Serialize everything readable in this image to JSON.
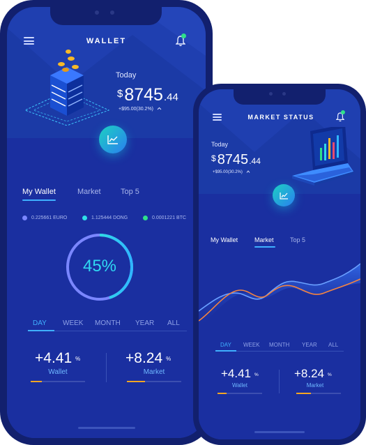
{
  "colors": {
    "frame": "#12206e",
    "header_bg": "#1b3aa6",
    "body_bg": "#1a2fa0",
    "accent_blue": "#3fb0ff",
    "accent_orange": "#f5a623",
    "accent_green": "#2ee08a",
    "fab_gradient": [
      "#1cd0c2",
      "#2a7ff0"
    ]
  },
  "phone1": {
    "header": {
      "title": "WALLET",
      "menu_icon": "hamburger-icon",
      "notification_icon": "bell-icon"
    },
    "balance": {
      "today_label": "Today",
      "currency": "$",
      "amount_int": "8745",
      "amount_dec": ".44",
      "change": "+$95.00(30.2%)",
      "change_icon": "caret-up-icon"
    },
    "fab_icon": "chart-icon",
    "tabs": [
      {
        "label": "My Wallet",
        "active": true
      },
      {
        "label": "Market",
        "active": false
      },
      {
        "label": "Top 5",
        "active": false
      }
    ],
    "legend": [
      {
        "label": "0.225661 EURO",
        "color": "#7a86ff"
      },
      {
        "label": "1.125444 DONG",
        "color": "#2fe0e8"
      },
      {
        "label": "0.0001221 BTC",
        "color": "#2ee08a"
      }
    ],
    "gauge": {
      "value_label": "45%",
      "value": 0.45
    },
    "ranges": [
      {
        "label": "DAY",
        "active": true
      },
      {
        "label": "WEEK",
        "active": false
      },
      {
        "label": "MONTH",
        "active": false
      },
      {
        "label": "YEAR",
        "active": false
      },
      {
        "label": "ALL",
        "active": false
      }
    ],
    "stats": [
      {
        "value": "+4.41",
        "unit": "%",
        "label": "Wallet",
        "progress": 0.2
      },
      {
        "value": "+8.24",
        "unit": "%",
        "label": "Market",
        "progress": 0.33
      }
    ]
  },
  "phone2": {
    "header": {
      "title": "MARKET STATUS",
      "menu_icon": "hamburger-icon",
      "notification_icon": "bell-icon"
    },
    "balance": {
      "today_label": "Today",
      "currency": "$",
      "amount_int": "8745",
      "amount_dec": ".44",
      "change": "+$95.00(30.2%)",
      "change_icon": "caret-up-icon"
    },
    "fab_icon": "chart-icon",
    "tabs": [
      {
        "label": "My Wallet",
        "active": false
      },
      {
        "label": "Market",
        "active": true
      },
      {
        "label": "Top 5",
        "active": false
      }
    ],
    "ranges": [
      {
        "label": "DAY",
        "active": true
      },
      {
        "label": "WEEK",
        "active": false
      },
      {
        "label": "MONTH",
        "active": false
      },
      {
        "label": "YEAR",
        "active": false
      },
      {
        "label": "ALL",
        "active": false
      }
    ],
    "stats": [
      {
        "value": "+4.41",
        "unit": "%",
        "label": "Wallet",
        "progress": 0.2
      },
      {
        "value": "+8.24",
        "unit": "%",
        "label": "Market",
        "progress": 0.33
      }
    ]
  }
}
